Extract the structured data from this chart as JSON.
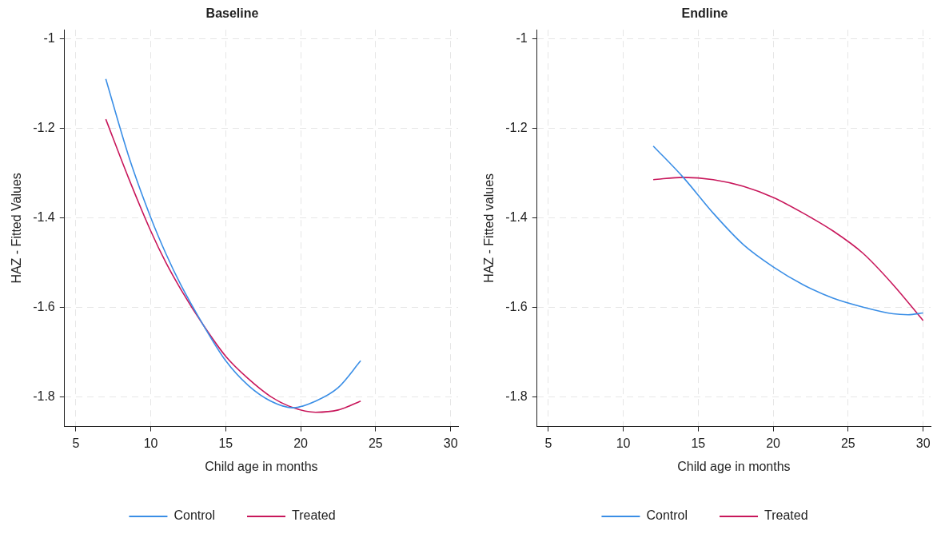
{
  "chart_data": [
    {
      "type": "line",
      "title": "Baseline",
      "xlabel": "Child age in months",
      "ylabel": "HAZ - Fitted Values",
      "xlim": [
        4.25,
        30.5
      ],
      "ylim": [
        -1.867,
        -0.98
      ],
      "xticks": [
        5,
        10,
        15,
        20,
        25,
        30
      ],
      "yticks": [
        -1.8,
        -1.6,
        -1.4,
        -1.2,
        -1
      ],
      "grid": true,
      "legend": "bottom",
      "marker": "none",
      "line_style": "solid",
      "series": [
        {
          "name": "Control",
          "color": "#3a8ee6",
          "x": [
            7,
            8.5,
            10,
            11,
            12,
            13.5,
            15,
            16.5,
            18,
            19.5,
            21,
            22.5,
            24
          ],
          "values": [
            -1.09,
            -1.26,
            -1.4,
            -1.48,
            -1.55,
            -1.64,
            -1.72,
            -1.775,
            -1.81,
            -1.825,
            -1.81,
            -1.78,
            -1.72
          ]
        },
        {
          "name": "Treated",
          "color": "#c8175b",
          "x": [
            7,
            8.5,
            10,
            11,
            12,
            13.5,
            15,
            16.5,
            18,
            19.5,
            21,
            22.5,
            24
          ],
          "values": [
            -1.18,
            -1.31,
            -1.43,
            -1.5,
            -1.56,
            -1.64,
            -1.71,
            -1.76,
            -1.8,
            -1.825,
            -1.835,
            -1.83,
            -1.81
          ]
        }
      ]
    },
    {
      "type": "line",
      "title": "Endline",
      "xlabel": "Child age in months",
      "ylabel": "HAZ - Fitted values",
      "xlim": [
        4.25,
        30.5
      ],
      "ylim": [
        -1.867,
        -0.98
      ],
      "xticks": [
        5,
        10,
        15,
        20,
        25,
        30
      ],
      "yticks": [
        -1.8,
        -1.6,
        -1.4,
        -1.2,
        -1
      ],
      "grid": true,
      "legend": "bottom",
      "marker": "none",
      "line_style": "solid",
      "series": [
        {
          "name": "Control",
          "color": "#3a8ee6",
          "x": [
            12,
            14,
            16,
            18,
            20,
            22,
            24,
            26,
            28,
            29,
            30
          ],
          "values": [
            -1.24,
            -1.31,
            -1.39,
            -1.46,
            -1.51,
            -1.55,
            -1.58,
            -1.6,
            -1.615,
            -1.617,
            -1.613
          ]
        },
        {
          "name": "Treated",
          "color": "#c8175b",
          "x": [
            12,
            14,
            16,
            18,
            20,
            22,
            24,
            26,
            28,
            30
          ],
          "values": [
            -1.315,
            -1.31,
            -1.315,
            -1.33,
            -1.355,
            -1.39,
            -1.43,
            -1.48,
            -1.55,
            -1.63
          ]
        }
      ]
    }
  ]
}
